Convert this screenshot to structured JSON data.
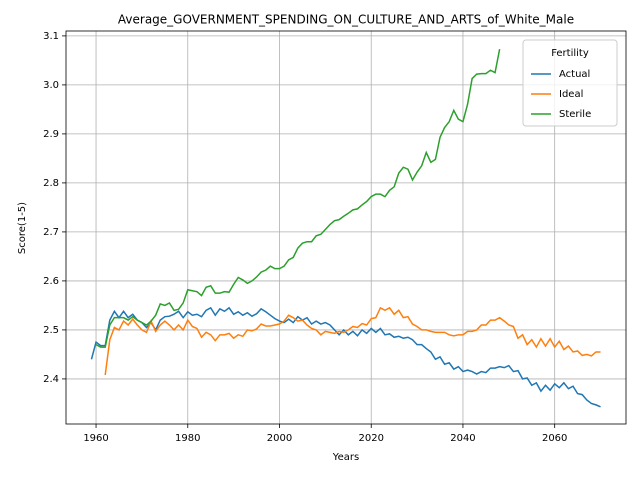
{
  "chart_data": {
    "type": "line",
    "title": "Average_GOVERNMENT_SPENDING_ON_CULTURE_AND_ARTS_of_White_Male",
    "x_label": "Years",
    "y_label": "Score(1-5)",
    "legend_title": "Fertility",
    "legend": "upper right",
    "grid": true,
    "xlim": [
      1953.45,
      2075.55
    ],
    "ylim": [
      2.308,
      3.11
    ],
    "xticks": [
      1960,
      1980,
      2000,
      2020,
      2040,
      2060
    ],
    "yticks": [
      2.4,
      2.5,
      2.6,
      2.7,
      2.8,
      2.9,
      {
        "value": 3,
        "label": "3.0"
      },
      3.1
    ],
    "x": [
      1959,
      1960,
      1961,
      1962,
      1963,
      1964,
      1965,
      1966,
      1967,
      1968,
      1969,
      1970,
      1971,
      1972,
      1973,
      1974,
      1975,
      1976,
      1977,
      1978,
      1979,
      1980,
      1981,
      1982,
      1983,
      1984,
      1985,
      1986,
      1987,
      1988,
      1989,
      1990,
      1991,
      1992,
      1993,
      1994,
      1995,
      1996,
      1997,
      1998,
      1999,
      2000,
      2001,
      2002,
      2003,
      2004,
      2005,
      2006,
      2007,
      2008,
      2009,
      2010,
      2011,
      2012,
      2013,
      2014,
      2015,
      2016,
      2017,
      2018,
      2019,
      2020,
      2021,
      2022,
      2023,
      2024,
      2025,
      2026,
      2027,
      2028,
      2029,
      2030,
      2031,
      2032,
      2033,
      2034,
      2035,
      2036,
      2037,
      2038,
      2039,
      2040,
      2041,
      2042,
      2043,
      2044,
      2045,
      2046,
      2047,
      2048,
      2049,
      2050,
      2051,
      2052,
      2053,
      2054,
      2055,
      2056,
      2057,
      2058,
      2059,
      2060,
      2061,
      2062,
      2063,
      2064,
      2065,
      2066,
      2067,
      2068,
      2069,
      2070
    ],
    "series": [
      {
        "name": "Actual",
        "color": "#1f77b4",
        "values": [
          2.44,
          2.475,
          2.468,
          2.468,
          2.52,
          2.538,
          2.525,
          2.538,
          2.525,
          2.532,
          2.52,
          2.515,
          2.505,
          2.515,
          2.5,
          2.52,
          2.527,
          2.528,
          2.532,
          2.538,
          2.525,
          2.537,
          2.53,
          2.532,
          2.527,
          2.54,
          2.545,
          2.53,
          2.543,
          2.538,
          2.545,
          2.532,
          2.537,
          2.53,
          2.535,
          2.528,
          2.533,
          2.543,
          2.537,
          2.53,
          2.523,
          2.518,
          2.515,
          2.522,
          2.515,
          2.527,
          2.52,
          2.525,
          2.512,
          2.518,
          2.512,
          2.515,
          2.51,
          2.5,
          2.49,
          2.5,
          2.49,
          2.497,
          2.488,
          2.5,
          2.493,
          2.503,
          2.495,
          2.503,
          2.49,
          2.492,
          2.485,
          2.487,
          2.483,
          2.485,
          2.48,
          2.47,
          2.47,
          2.462,
          2.455,
          2.44,
          2.445,
          2.43,
          2.433,
          2.42,
          2.425,
          2.415,
          2.418,
          2.415,
          2.41,
          2.415,
          2.413,
          2.422,
          2.422,
          2.425,
          2.423,
          2.427,
          2.415,
          2.417,
          2.4,
          2.402,
          2.387,
          2.392,
          2.375,
          2.387,
          2.377,
          2.39,
          2.382,
          2.392,
          2.38,
          2.385,
          2.37,
          2.368,
          2.357,
          2.35,
          2.347,
          2.343
        ]
      },
      {
        "name": "Ideal",
        "color": "#ff7f0e",
        "values": [
          null,
          null,
          null,
          2.408,
          2.48,
          2.505,
          2.5,
          2.518,
          2.51,
          2.522,
          2.51,
          2.5,
          2.495,
          2.518,
          2.497,
          2.51,
          2.518,
          2.51,
          2.5,
          2.51,
          2.5,
          2.52,
          2.507,
          2.503,
          2.485,
          2.495,
          2.49,
          2.478,
          2.49,
          2.49,
          2.493,
          2.483,
          2.49,
          2.487,
          2.5,
          2.498,
          2.502,
          2.512,
          2.508,
          2.508,
          2.51,
          2.512,
          2.518,
          2.53,
          2.525,
          2.518,
          2.52,
          2.51,
          2.503,
          2.5,
          2.49,
          2.497,
          2.495,
          2.493,
          2.497,
          2.495,
          2.5,
          2.507,
          2.505,
          2.513,
          2.51,
          2.523,
          2.525,
          2.545,
          2.54,
          2.545,
          2.532,
          2.54,
          2.525,
          2.527,
          2.512,
          2.507,
          2.5,
          2.5,
          2.497,
          2.495,
          2.495,
          2.495,
          2.49,
          2.488,
          2.49,
          2.49,
          2.497,
          2.497,
          2.5,
          2.51,
          2.51,
          2.52,
          2.52,
          2.525,
          2.518,
          2.51,
          2.507,
          2.483,
          2.49,
          2.47,
          2.48,
          2.465,
          2.482,
          2.467,
          2.482,
          2.465,
          2.477,
          2.46,
          2.467,
          2.455,
          2.457,
          2.448,
          2.45,
          2.447,
          2.455,
          2.455
        ]
      },
      {
        "name": "Sterile",
        "color": "#2ca02c",
        "values": [
          null,
          2.47,
          2.465,
          2.465,
          2.51,
          2.525,
          2.525,
          2.525,
          2.52,
          2.527,
          2.52,
          2.515,
          2.51,
          2.518,
          2.53,
          2.553,
          2.55,
          2.555,
          2.54,
          2.542,
          2.555,
          2.582,
          2.58,
          2.578,
          2.57,
          2.587,
          2.59,
          2.575,
          2.575,
          2.578,
          2.577,
          2.593,
          2.607,
          2.602,
          2.595,
          2.6,
          2.608,
          2.618,
          2.622,
          2.63,
          2.625,
          2.625,
          2.63,
          2.643,
          2.648,
          2.667,
          2.677,
          2.68,
          2.68,
          2.692,
          2.695,
          2.705,
          2.715,
          2.723,
          2.725,
          2.732,
          2.738,
          2.745,
          2.747,
          2.755,
          2.762,
          2.772,
          2.777,
          2.777,
          2.772,
          2.785,
          2.792,
          2.82,
          2.832,
          2.828,
          2.806,
          2.822,
          2.835,
          2.862,
          2.842,
          2.848,
          2.893,
          2.913,
          2.925,
          2.948,
          2.93,
          2.925,
          2.96,
          3.013,
          3.022,
          3.023,
          3.023,
          3.03,
          3.025,
          3.073,
          null,
          null,
          null,
          null,
          null,
          null,
          null,
          null,
          null,
          null,
          null,
          null,
          null,
          null,
          null,
          null,
          null,
          null,
          null,
          null,
          null,
          null
        ]
      }
    ]
  }
}
